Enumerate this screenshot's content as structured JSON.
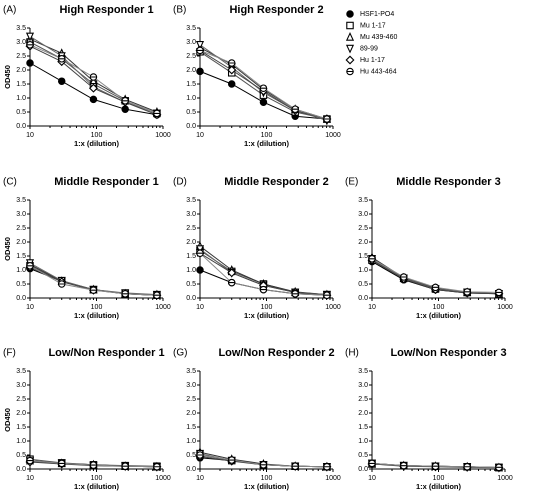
{
  "legend": {
    "names": [
      "HSF1-PO4",
      "Mu 1-17",
      "Mu 439-460",
      "89-99",
      "Hu 1-17",
      "Hu 443-464"
    ]
  },
  "chart_data": [
    {
      "type": "line",
      "label": "(A)",
      "title": "High Responder 1",
      "xlabel": "1:x (dilution)",
      "ylabel": "OD450",
      "x": [
        10,
        30,
        90,
        270,
        810
      ],
      "xscale": "log",
      "xlim": [
        10,
        1000
      ],
      "xticks": [
        10,
        100,
        1000
      ],
      "ylim": [
        0,
        3.5
      ],
      "yticks": [
        {
          "value": 0,
          "label": "0.0"
        },
        {
          "value": 0.5,
          "label": "0.5"
        },
        {
          "value": 1,
          "label": "1.0"
        },
        {
          "value": 1.5,
          "label": "1.5"
        },
        {
          "value": 2,
          "label": "2.0"
        },
        {
          "value": 2.5,
          "label": "2.5"
        },
        {
          "value": 3,
          "label": "3.0"
        },
        {
          "value": 3.5,
          "label": "3.5"
        }
      ],
      "series": [
        {
          "values": [
            2.25,
            1.6,
            0.95,
            0.6,
            0.4
          ]
        },
        {
          "values": [
            3.0,
            2.4,
            1.5,
            0.9,
            0.45
          ]
        },
        {
          "values": [
            3.1,
            2.6,
            1.6,
            0.95,
            0.5
          ]
        },
        {
          "values": [
            3.2,
            2.5,
            1.4,
            0.85,
            0.45
          ]
        },
        {
          "values": [
            2.85,
            2.3,
            1.35,
            0.85,
            0.4
          ]
        },
        {
          "values": [
            2.9,
            2.4,
            1.75,
            0.9,
            0.45
          ]
        }
      ]
    },
    {
      "type": "line",
      "label": "(B)",
      "title": "High Responder 2",
      "xlabel": "1:x (dilution)",
      "x": [
        10,
        30,
        90,
        270,
        810
      ],
      "xscale": "log",
      "xlim": [
        10,
        1000
      ],
      "xticks": [
        10,
        100,
        1000
      ],
      "ylim": [
        0,
        3.5
      ],
      "yticks": [
        {
          "value": 0,
          "label": "0.0"
        },
        {
          "value": 0.5,
          "label": "0.5"
        },
        {
          "value": 1,
          "label": "1.0"
        },
        {
          "value": 1.5,
          "label": "1.5"
        },
        {
          "value": 2,
          "label": "2.0"
        },
        {
          "value": 2.5,
          "label": "2.5"
        },
        {
          "value": 3,
          "label": "3.0"
        },
        {
          "value": 3.5,
          "label": "3.5"
        }
      ],
      "series": [
        {
          "values": [
            1.95,
            1.5,
            0.85,
            0.35,
            0.25
          ]
        },
        {
          "values": [
            2.65,
            1.9,
            1.1,
            0.5,
            0.25
          ]
        },
        {
          "values": [
            2.8,
            2.2,
            1.3,
            0.6,
            0.25
          ]
        },
        {
          "values": [
            2.9,
            2.1,
            1.2,
            0.55,
            0.2
          ]
        },
        {
          "values": [
            2.7,
            2.0,
            1.25,
            0.55,
            0.25
          ]
        },
        {
          "values": [
            2.7,
            2.25,
            1.35,
            0.6,
            0.25
          ]
        }
      ]
    },
    {
      "type": "line",
      "label": "(C)",
      "title": "Middle Responder 1",
      "xlabel": "1:x (dilution)",
      "ylabel": "OD450",
      "x": [
        10,
        30,
        90,
        270,
        810
      ],
      "xscale": "log",
      "xlim": [
        10,
        1000
      ],
      "xticks": [
        10,
        100,
        1000
      ],
      "ylim": [
        0,
        3.5
      ],
      "yticks": [
        {
          "value": 0,
          "label": "0.0"
        },
        {
          "value": 0.5,
          "label": "0.5"
        },
        {
          "value": 1,
          "label": "1.0"
        },
        {
          "value": 1.5,
          "label": "1.5"
        },
        {
          "value": 2,
          "label": "2.0"
        },
        {
          "value": 2.5,
          "label": "2.5"
        },
        {
          "value": 3,
          "label": "3.0"
        },
        {
          "value": 3.5,
          "label": "3.5"
        }
      ],
      "series": [
        {
          "values": [
            1.05,
            0.6,
            0.3,
            0.15,
            0.1
          ]
        },
        {
          "values": [
            1.15,
            0.6,
            0.3,
            0.15,
            0.1
          ]
        },
        {
          "values": [
            1.2,
            0.6,
            0.3,
            0.15,
            0.12
          ]
        },
        {
          "values": [
            1.25,
            0.62,
            0.3,
            0.18,
            0.12
          ]
        },
        {
          "values": [
            1.1,
            0.58,
            0.28,
            0.15,
            0.1
          ]
        },
        {
          "values": [
            1.15,
            0.5,
            0.28,
            0.15,
            0.1
          ]
        }
      ]
    },
    {
      "type": "line",
      "label": "(D)",
      "title": "Middle Responder 2",
      "xlabel": "1:x (dilution)",
      "x": [
        10,
        30,
        90,
        270,
        810
      ],
      "xscale": "log",
      "xlim": [
        10,
        1000
      ],
      "xticks": [
        10,
        100,
        1000
      ],
      "ylim": [
        0,
        3.5
      ],
      "yticks": [
        {
          "value": 0,
          "label": "0.0"
        },
        {
          "value": 0.5,
          "label": "0.5"
        },
        {
          "value": 1,
          "label": "1.0"
        },
        {
          "value": 1.5,
          "label": "1.5"
        },
        {
          "value": 2,
          "label": "2.0"
        },
        {
          "value": 2.5,
          "label": "2.5"
        },
        {
          "value": 3,
          "label": "3.0"
        },
        {
          "value": 3.5,
          "label": "3.5"
        }
      ],
      "series": [
        {
          "values": [
            1.0,
            0.55,
            0.3,
            0.15,
            0.1
          ]
        },
        {
          "values": [
            1.7,
            0.95,
            0.5,
            0.2,
            0.12
          ]
        },
        {
          "values": [
            1.85,
            1.0,
            0.5,
            0.22,
            0.12
          ]
        },
        {
          "values": [
            1.75,
            0.9,
            0.45,
            0.2,
            0.12
          ]
        },
        {
          "values": [
            1.6,
            0.9,
            0.45,
            0.2,
            0.1
          ]
        },
        {
          "values": [
            1.6,
            0.55,
            0.3,
            0.15,
            0.1
          ]
        }
      ]
    },
    {
      "type": "line",
      "label": "(E)",
      "title": "Middle Responder 3",
      "xlabel": "1:x (dilution)",
      "x": [
        10,
        30,
        90,
        270,
        810
      ],
      "xscale": "log",
      "xlim": [
        10,
        1000
      ],
      "xticks": [
        10,
        100,
        1000
      ],
      "ylim": [
        0,
        3.5
      ],
      "yticks": [
        {
          "value": 0,
          "label": "0.0"
        },
        {
          "value": 0.5,
          "label": "0.5"
        },
        {
          "value": 1,
          "label": "1.0"
        },
        {
          "value": 1.5,
          "label": "1.5"
        },
        {
          "value": 2,
          "label": "2.0"
        },
        {
          "value": 2.5,
          "label": "2.5"
        },
        {
          "value": 3,
          "label": "3.0"
        },
        {
          "value": 3.5,
          "label": "3.5"
        }
      ],
      "series": [
        {
          "values": [
            1.3,
            0.65,
            0.3,
            0.18,
            0.15
          ]
        },
        {
          "values": [
            1.35,
            0.7,
            0.32,
            0.2,
            0.15
          ]
        },
        {
          "values": [
            1.45,
            0.72,
            0.35,
            0.2,
            0.15
          ]
        },
        {
          "values": [
            1.4,
            0.7,
            0.32,
            0.2,
            0.15
          ]
        },
        {
          "values": [
            1.35,
            0.68,
            0.3,
            0.18,
            0.15
          ]
        },
        {
          "values": [
            1.4,
            0.75,
            0.38,
            0.22,
            0.2
          ]
        }
      ]
    },
    {
      "type": "line",
      "label": "(F)",
      "title": "Low/Non Responder 1",
      "xlabel": "1:x (dilution)",
      "ylabel": "OD450",
      "x": [
        10,
        30,
        90,
        270,
        810
      ],
      "xscale": "log",
      "xlim": [
        10,
        1000
      ],
      "xticks": [
        10,
        100,
        1000
      ],
      "ylim": [
        0,
        3.5
      ],
      "yticks": [
        {
          "value": 0,
          "label": "0.0"
        },
        {
          "value": 0.5,
          "label": "0.5"
        },
        {
          "value": 1,
          "label": "1.0"
        },
        {
          "value": 1.5,
          "label": "1.5"
        },
        {
          "value": 2,
          "label": "2.0"
        },
        {
          "value": 2.5,
          "label": "2.5"
        },
        {
          "value": 3,
          "label": "3.0"
        },
        {
          "value": 3.5,
          "label": "3.5"
        }
      ],
      "series": [
        {
          "values": [
            0.3,
            0.2,
            0.15,
            0.1,
            0.08
          ]
        },
        {
          "values": [
            0.35,
            0.22,
            0.15,
            0.12,
            0.1
          ]
        },
        {
          "values": [
            0.3,
            0.2,
            0.15,
            0.1,
            0.08
          ]
        },
        {
          "values": [
            0.28,
            0.2,
            0.12,
            0.1,
            0.08
          ]
        },
        {
          "values": [
            0.25,
            0.18,
            0.12,
            0.1,
            0.08
          ]
        },
        {
          "values": [
            0.3,
            0.2,
            0.14,
            0.1,
            0.08
          ]
        }
      ]
    },
    {
      "type": "line",
      "label": "(G)",
      "title": "Low/Non Responder 2",
      "xlabel": "1:x (dilution)",
      "x": [
        10,
        30,
        90,
        270,
        810
      ],
      "xscale": "log",
      "xlim": [
        10,
        1000
      ],
      "xticks": [
        10,
        100,
        1000
      ],
      "ylim": [
        0,
        3.5
      ],
      "yticks": [
        {
          "value": 0,
          "label": "0.0"
        },
        {
          "value": 0.5,
          "label": "0.5"
        },
        {
          "value": 1,
          "label": "1.0"
        },
        {
          "value": 1.5,
          "label": "1.5"
        },
        {
          "value": 2,
          "label": "2.0"
        },
        {
          "value": 2.5,
          "label": "2.5"
        },
        {
          "value": 3,
          "label": "3.0"
        },
        {
          "value": 3.5,
          "label": "3.5"
        }
      ],
      "series": [
        {
          "values": [
            0.4,
            0.3,
            0.15,
            0.1,
            0.08
          ]
        },
        {
          "values": [
            0.5,
            0.3,
            0.15,
            0.1,
            0.08
          ]
        },
        {
          "values": [
            0.6,
            0.35,
            0.18,
            0.1,
            0.08
          ]
        },
        {
          "values": [
            0.55,
            0.3,
            0.15,
            0.1,
            0.08
          ]
        },
        {
          "values": [
            0.45,
            0.28,
            0.15,
            0.1,
            0.08
          ]
        },
        {
          "values": [
            0.5,
            0.32,
            0.15,
            0.1,
            0.08
          ]
        }
      ]
    },
    {
      "type": "line",
      "label": "(H)",
      "title": "Low/Non Responder 3",
      "xlabel": "1:x (dilution)",
      "x": [
        10,
        30,
        90,
        270,
        810
      ],
      "xscale": "log",
      "xlim": [
        10,
        1000
      ],
      "xticks": [
        10,
        100,
        1000
      ],
      "ylim": [
        0,
        3.5
      ],
      "yticks": [
        {
          "value": 0,
          "label": "0.0"
        },
        {
          "value": 0.5,
          "label": "0.5"
        },
        {
          "value": 1,
          "label": "1.0"
        },
        {
          "value": 1.5,
          "label": "1.5"
        },
        {
          "value": 2,
          "label": "2.0"
        },
        {
          "value": 2.5,
          "label": "2.5"
        },
        {
          "value": 3,
          "label": "3.0"
        },
        {
          "value": 3.5,
          "label": "3.5"
        }
      ],
      "series": [
        {
          "values": [
            0.2,
            0.12,
            0.1,
            0.08,
            0.05
          ]
        },
        {
          "values": [
            0.2,
            0.12,
            0.1,
            0.08,
            0.06
          ]
        },
        {
          "values": [
            0.18,
            0.12,
            0.1,
            0.08,
            0.05
          ]
        },
        {
          "values": [
            0.2,
            0.12,
            0.1,
            0.08,
            0.05
          ]
        },
        {
          "values": [
            0.18,
            0.1,
            0.08,
            0.06,
            0.05
          ]
        },
        {
          "values": [
            0.2,
            0.12,
            0.1,
            0.08,
            0.06
          ]
        }
      ]
    }
  ]
}
